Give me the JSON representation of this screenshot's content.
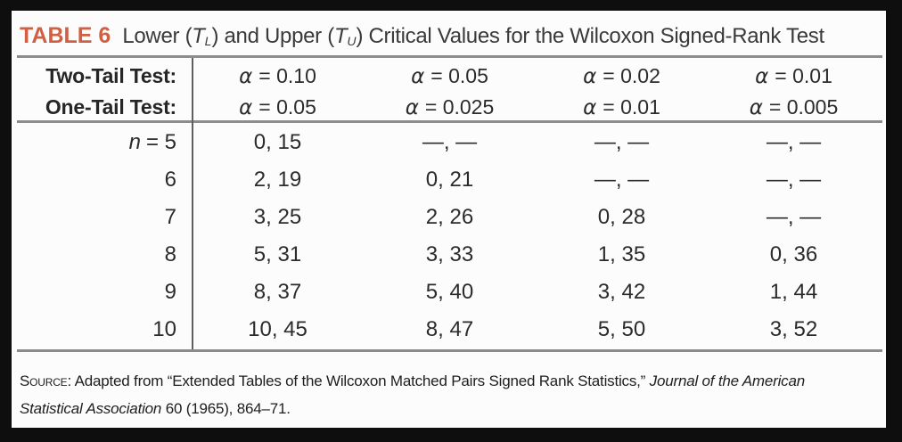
{
  "colors": {
    "frame_background": "#0e0e0e",
    "panel_background": "#fcfcfc",
    "accent_orange": "#d16043",
    "rule_gray": "#8c8c8c",
    "divider_gray": "#5f5f5f",
    "text_dark": "#2b2b2b"
  },
  "title": {
    "label": "TABLE 6",
    "part1": "Lower (",
    "tl_base": "T",
    "tl_sub": "L",
    "part2": ") and Upper (",
    "tu_base": "T",
    "tu_sub": "U",
    "part3": ") Critical Values for the Wilcoxon Signed-Rank Test"
  },
  "header": {
    "alpha": "α",
    "rows": [
      {
        "label": "Two-Tail Test:",
        "values": [
          "= 0.10",
          "= 0.05",
          "= 0.02",
          "= 0.01"
        ]
      },
      {
        "label": "One-Tail Test:",
        "values": [
          "= 0.05",
          "= 0.025",
          "= 0.01",
          "= 0.005"
        ]
      }
    ]
  },
  "body": {
    "n_var": "n",
    "rows": [
      {
        "label": "= 5",
        "cells": [
          "0, 15",
          "—, —",
          "—, —",
          "—, —"
        ]
      },
      {
        "label": "6",
        "cells": [
          "2, 19",
          "0, 21",
          "—, —",
          "—, —"
        ]
      },
      {
        "label": "7",
        "cells": [
          "3, 25",
          "2, 26",
          "0, 28",
          "—, —"
        ]
      },
      {
        "label": "8",
        "cells": [
          "5, 31",
          "3, 33",
          "1, 35",
          "0, 36"
        ]
      },
      {
        "label": "9",
        "cells": [
          "8, 37",
          "5, 40",
          "3, 42",
          "1, 44"
        ]
      },
      {
        "label": "10",
        "cells": [
          "10, 45",
          "8, 47",
          "5, 50",
          "3, 52"
        ]
      }
    ]
  },
  "source": {
    "label": "Source:",
    "text_before": "Adapted from “Extended Tables of the Wilcoxon Matched Pairs Signed Rank Statistics,” ",
    "journal": "Journal of the American Statistical Association",
    "text_after": " 60 (1965), 864–71."
  }
}
